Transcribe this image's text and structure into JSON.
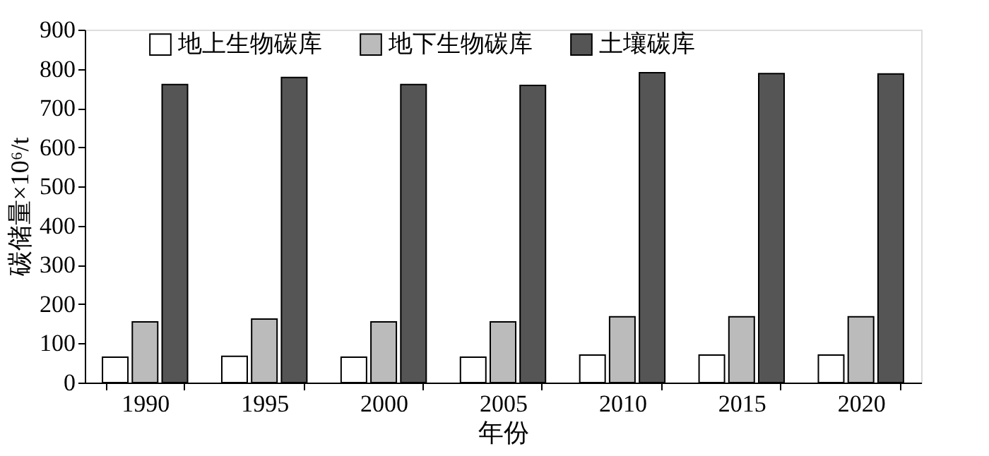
{
  "chart_data": {
    "type": "bar",
    "xlabel": "年份",
    "ylabel": "碳储量×10⁶/t",
    "categories": [
      "1990",
      "1995",
      "2000",
      "2005",
      "2010",
      "2015",
      "2020"
    ],
    "series": [
      {
        "name": "地上生物碳库",
        "color": "#ffffff",
        "values": [
          65,
          67,
          65,
          65,
          70,
          70,
          70
        ]
      },
      {
        "name": "地下生物碳库",
        "color": "#bbbbbb",
        "values": [
          155,
          162,
          155,
          155,
          168,
          168,
          168
        ]
      },
      {
        "name": "土壤碳库",
        "color": "#555555",
        "values": [
          760,
          778,
          760,
          758,
          790,
          788,
          787
        ]
      }
    ],
    "ylim": [
      0,
      900
    ],
    "yticks": [
      0,
      100,
      200,
      300,
      400,
      500,
      600,
      700,
      800,
      900
    ],
    "grid": false,
    "legend": "top"
  }
}
